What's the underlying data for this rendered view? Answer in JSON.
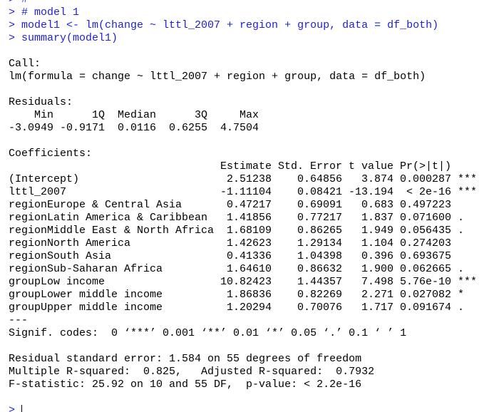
{
  "console": {
    "commands": [
      "> #",
      "> # model 1",
      "> model1 <- lm(change ~ lttl_2007 + region + group, data = df_both)",
      "> summary(model1)"
    ],
    "call_heading": "Call:",
    "call": "lm(formula = change ~ lttl_2007 + region + group, data = df_both)",
    "residuals": {
      "heading": "Residuals:",
      "labels": [
        "Min",
        "1Q",
        "Median",
        "3Q",
        "Max"
      ],
      "values": [
        "-3.0949",
        "-0.9171",
        "0.0116",
        "0.6255",
        "4.7504"
      ]
    },
    "coefficients": {
      "heading": "Coefficients:",
      "columns": [
        "Estimate",
        "Std. Error",
        "t value",
        "Pr(>|t|)"
      ],
      "rows": [
        {
          "name": "(Intercept)",
          "cells": [
            "2.51238",
            "0.64856",
            "3.874",
            "0.000287"
          ],
          "signif": "***"
        },
        {
          "name": "lttl_2007",
          "cells": [
            "-1.11104",
            "0.08421",
            "-13.194",
            "< 2e-16"
          ],
          "signif": "***"
        },
        {
          "name": "regionEurope & Central Asia",
          "cells": [
            "0.47217",
            "0.69091",
            "0.683",
            "0.497223"
          ]
        },
        {
          "name": "regionLatin America & Caribbean",
          "cells": [
            "1.41856",
            "0.77217",
            "1.837",
            "0.071600"
          ],
          "signif": "."
        },
        {
          "name": "regionMiddle East & North Africa",
          "cells": [
            "1.68109",
            "0.86265",
            "1.949",
            "0.056435"
          ],
          "signif": "."
        },
        {
          "name": "regionNorth America",
          "cells": [
            "1.42623",
            "1.29134",
            "1.104",
            "0.274203"
          ]
        },
        {
          "name": "regionSouth Asia",
          "cells": [
            "0.41336",
            "1.04398",
            "0.396",
            "0.693675"
          ]
        },
        {
          "name": "regionSub-Saharan Africa",
          "cells": [
            "1.64610",
            "0.86632",
            "1.900",
            "0.062665"
          ],
          "signif": "."
        },
        {
          "name": "groupLow income",
          "cells": [
            "10.82423",
            "1.44357",
            "7.498",
            "5.76e-10"
          ],
          "signif": "***"
        },
        {
          "name": "groupLower middle income",
          "cells": [
            "1.86836",
            "0.82269",
            "2.271",
            "0.027082"
          ],
          "signif": "*"
        },
        {
          "name": "groupUpper middle income",
          "cells": [
            "1.20294",
            "0.70076",
            "1.717",
            "0.091674"
          ],
          "signif": "."
        }
      ]
    },
    "separator": "---",
    "signif_codes": "Signif. codes:  0 ‘***’ 0.001 ‘**’ 0.01 ‘*’ 0.05 ‘.’ 0.1 ‘ ’ 1",
    "summary_lines": [
      "Residual standard error: 1.584 on 55 degrees of freedom",
      "Multiple R-squared:  0.825,\tAdjusted R-squared:  0.7932 ",
      "F-statistic: 25.92 on 10 and 55 DF,  p-value: < 2.2e-16"
    ],
    "prompt": ">"
  }
}
